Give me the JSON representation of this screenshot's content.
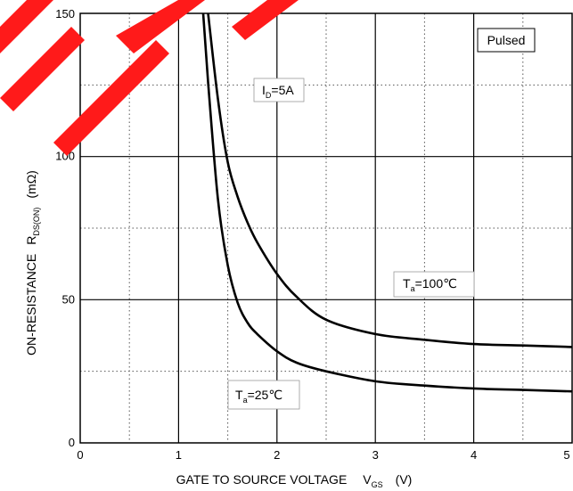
{
  "chart_data": {
    "type": "line",
    "title": "",
    "xlabel": {
      "main": "GATE TO SOURCE VOLTAGE",
      "symbol": "V",
      "symbol_sub": "GS",
      "unit": "(V)"
    },
    "ylabel": {
      "main": "ON-RESISTANCE",
      "symbol": "R",
      "symbol_sub": "DS(ON)",
      "unit": "(mΩ)"
    },
    "xlim": [
      0,
      5
    ],
    "ylim": [
      0,
      150
    ],
    "x_ticks": [
      "0",
      "1",
      "2",
      "3",
      "4",
      "5"
    ],
    "y_ticks": [
      "0",
      "50",
      "100",
      "150"
    ],
    "grid": "solid major, dotted minor",
    "annotations": {
      "pulsed": "Pulsed",
      "id_cond": {
        "main": "I",
        "sub": "D",
        "rest": "=5A"
      },
      "ta100": {
        "main": "T",
        "sub": "a",
        "rest": "=100℃"
      },
      "ta25": {
        "main": "T",
        "sub": "a",
        "rest": "=25℃"
      }
    },
    "series": [
      {
        "x": [
          1.3,
          1.4,
          1.5,
          1.6,
          1.7,
          1.8,
          2.0,
          2.2,
          2.5,
          3.0,
          3.5,
          4.0,
          4.5,
          5.0
        ],
        "y": [
          150,
          120,
          98,
          86,
          77,
          70,
          59,
          51,
          43,
          38,
          36,
          34.5,
          34,
          33.5
        ]
      },
      {
        "x": [
          1.25,
          1.3,
          1.4,
          1.5,
          1.6,
          1.7,
          1.8,
          2.0,
          2.2,
          2.5,
          3.0,
          3.5,
          4.0,
          4.5,
          5.0
        ],
        "y": [
          150,
          126,
          85,
          62,
          49,
          42,
          38,
          32,
          28,
          25,
          21.5,
          20,
          19,
          18.5,
          18
        ]
      }
    ]
  }
}
